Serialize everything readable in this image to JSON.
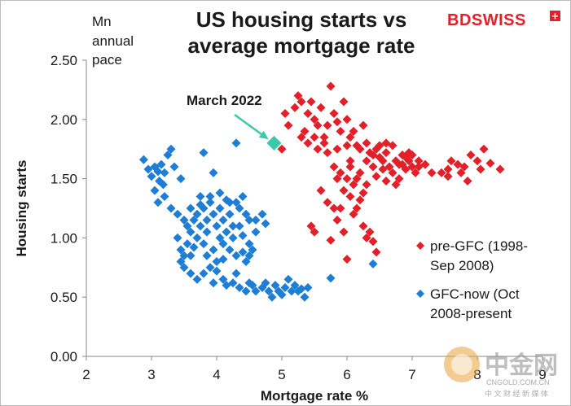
{
  "brand": {
    "logo_text": "BDSWISS",
    "plus_symbol": "+",
    "accent": "#e3202a"
  },
  "watermark": {
    "name_cn": "中金网",
    "url": "CNGOLD.COM.CN",
    "tagline_cn": "中 文 财 经 新 媒 体"
  },
  "chart_data": {
    "type": "scatter",
    "title_lines": [
      "US housing starts vs",
      "average mortgage rate"
    ],
    "unit_lines": [
      "Mn",
      "annual",
      "pace"
    ],
    "xlabel": "Mortgage rate %",
    "ylabel": "Housing starts",
    "xlim": [
      2,
      9
    ],
    "ylim": [
      0,
      2.5
    ],
    "x_ticks": [
      2,
      3,
      4,
      5,
      6,
      7,
      8,
      9
    ],
    "y_ticks": [
      "0.00",
      "0.50",
      "1.00",
      "1.50",
      "2.00",
      "2.50"
    ],
    "grid": false,
    "legend_position": "right",
    "annotation": {
      "label": "March 2022",
      "x": 4.88,
      "y": 1.8,
      "color": "#3cc9a8"
    },
    "series": [
      {
        "name": "pre-GFC (1998-Sep 2008)",
        "legend_lines": [
          "pre-GFC (1998-",
          "Sep 2008)"
        ],
        "color": "#e3202a",
        "points": [
          [
            5.0,
            1.75
          ],
          [
            5.1,
            1.95
          ],
          [
            5.05,
            2.05
          ],
          [
            5.2,
            2.1
          ],
          [
            5.25,
            2.2
          ],
          [
            5.3,
            2.15
          ],
          [
            5.35,
            1.9
          ],
          [
            5.4,
            2.05
          ],
          [
            5.45,
            2.15
          ],
          [
            5.5,
            2.0
          ],
          [
            5.55,
            1.95
          ],
          [
            5.6,
            2.1
          ],
          [
            5.65,
            1.85
          ],
          [
            5.7,
            1.95
          ],
          [
            5.75,
            2.28
          ],
          [
            5.8,
            2.05
          ],
          [
            5.85,
            1.98
          ],
          [
            5.9,
            1.9
          ],
          [
            5.95,
            2.15
          ],
          [
            6.0,
            2.0
          ],
          [
            6.05,
            1.85
          ],
          [
            6.1,
            1.9
          ],
          [
            6.15,
            1.78
          ],
          [
            6.2,
            1.75
          ],
          [
            6.25,
            1.95
          ],
          [
            6.3,
            1.8
          ],
          [
            6.35,
            1.72
          ],
          [
            6.4,
            1.7
          ],
          [
            6.45,
            1.75
          ],
          [
            6.5,
            1.68
          ],
          [
            6.55,
            1.65
          ],
          [
            6.6,
            1.72
          ],
          [
            6.65,
            1.6
          ],
          [
            6.7,
            1.78
          ],
          [
            6.75,
            1.65
          ],
          [
            6.8,
            1.62
          ],
          [
            6.85,
            1.7
          ],
          [
            6.9,
            1.58
          ],
          [
            6.95,
            1.65
          ],
          [
            7.0,
            1.6
          ],
          [
            7.05,
            1.55
          ],
          [
            7.2,
            1.62
          ],
          [
            7.3,
            1.55
          ],
          [
            7.45,
            1.55
          ],
          [
            7.55,
            1.58
          ],
          [
            7.6,
            1.65
          ],
          [
            7.7,
            1.62
          ],
          [
            7.75,
            1.55
          ],
          [
            7.8,
            1.6
          ],
          [
            7.85,
            1.48
          ],
          [
            7.9,
            1.7
          ],
          [
            8.0,
            1.65
          ],
          [
            8.05,
            1.58
          ],
          [
            8.1,
            1.75
          ],
          [
            8.2,
            1.63
          ],
          [
            8.35,
            1.58
          ],
          [
            5.4,
            1.8
          ],
          [
            5.55,
            1.75
          ],
          [
            5.7,
            1.72
          ],
          [
            5.8,
            1.6
          ],
          [
            5.85,
            1.5
          ],
          [
            5.9,
            1.55
          ],
          [
            5.95,
            1.4
          ],
          [
            6.0,
            1.5
          ],
          [
            6.05,
            1.65
          ],
          [
            6.1,
            1.45
          ],
          [
            6.15,
            1.5
          ],
          [
            6.2,
            1.55
          ],
          [
            6.25,
            1.38
          ],
          [
            6.3,
            1.45
          ],
          [
            6.4,
            1.6
          ],
          [
            6.45,
            1.52
          ],
          [
            6.55,
            1.58
          ],
          [
            6.6,
            1.48
          ],
          [
            6.7,
            1.55
          ],
          [
            6.75,
            1.45
          ],
          [
            6.8,
            1.5
          ],
          [
            6.85,
            1.62
          ],
          [
            6.9,
            1.68
          ],
          [
            6.95,
            1.72
          ],
          [
            7.0,
            1.7
          ],
          [
            7.1,
            1.65
          ],
          [
            5.8,
            1.25
          ],
          [
            5.85,
            1.15
          ],
          [
            5.95,
            1.05
          ],
          [
            5.75,
            0.98
          ],
          [
            5.45,
            1.1
          ],
          [
            5.5,
            1.05
          ],
          [
            6.1,
            1.2
          ],
          [
            6.2,
            1.32
          ],
          [
            6.25,
            1.1
          ],
          [
            6.3,
            1.0
          ],
          [
            6.35,
            1.05
          ],
          [
            6.4,
            0.97
          ],
          [
            6.0,
            0.82
          ],
          [
            6.45,
            0.88
          ],
          [
            5.6,
            1.4
          ],
          [
            5.7,
            1.3
          ],
          [
            5.9,
            1.25
          ],
          [
            6.05,
            1.35
          ],
          [
            6.15,
            1.25
          ],
          [
            5.3,
            1.85
          ],
          [
            5.65,
            1.8
          ],
          [
            6.0,
            1.78
          ],
          [
            6.3,
            1.65
          ],
          [
            6.6,
            1.8
          ],
          [
            7.1,
            1.6
          ],
          [
            7.55,
            1.52
          ],
          [
            5.85,
            1.75
          ],
          [
            6.05,
            1.6
          ],
          [
            5.5,
            1.85
          ],
          [
            6.5,
            1.78
          ]
        ]
      },
      {
        "name": "GFC-now (Oct 2008-present",
        "legend_lines": [
          "GFC-now (Oct",
          "2008-present"
        ],
        "color": "#1e7ed6",
        "points": [
          [
            2.88,
            1.66
          ],
          [
            2.95,
            1.58
          ],
          [
            3.0,
            1.52
          ],
          [
            3.05,
            1.6
          ],
          [
            3.1,
            1.56
          ],
          [
            3.15,
            1.62
          ],
          [
            3.2,
            1.55
          ],
          [
            3.25,
            1.7
          ],
          [
            3.3,
            1.75
          ],
          [
            3.12,
            1.48
          ],
          [
            3.05,
            1.4
          ],
          [
            3.1,
            1.3
          ],
          [
            3.18,
            1.45
          ],
          [
            3.35,
            1.6
          ],
          [
            3.2,
            1.35
          ],
          [
            3.3,
            1.25
          ],
          [
            3.4,
            1.2
          ],
          [
            3.5,
            1.15
          ],
          [
            3.4,
            1.0
          ],
          [
            3.45,
            0.9
          ],
          [
            3.5,
            0.85
          ],
          [
            3.55,
            0.95
          ],
          [
            3.6,
            1.05
          ],
          [
            3.65,
            1.15
          ],
          [
            3.7,
            1.2
          ],
          [
            3.75,
            1.1
          ],
          [
            3.8,
            1.25
          ],
          [
            3.85,
            1.15
          ],
          [
            3.9,
            1.3
          ],
          [
            3.95,
            1.2
          ],
          [
            4.0,
            1.1
          ],
          [
            4.05,
            1.25
          ],
          [
            4.1,
            1.15
          ],
          [
            4.15,
            1.05
          ],
          [
            4.2,
            1.2
          ],
          [
            4.25,
            1.1
          ],
          [
            4.3,
            1.3
          ],
          [
            4.35,
            1.25
          ],
          [
            4.4,
            1.35
          ],
          [
            4.45,
            1.2
          ],
          [
            4.5,
            1.15
          ],
          [
            3.7,
            1.0
          ],
          [
            3.8,
            0.95
          ],
          [
            3.85,
            1.05
          ],
          [
            3.95,
            0.9
          ],
          [
            4.05,
            1.0
          ],
          [
            4.1,
            0.95
          ],
          [
            4.2,
            0.9
          ],
          [
            4.3,
            0.85
          ],
          [
            4.4,
            0.88
          ],
          [
            4.45,
            0.8
          ],
          [
            4.5,
            0.85
          ],
          [
            4.55,
            0.9
          ],
          [
            3.45,
            0.8
          ],
          [
            3.5,
            0.75
          ],
          [
            3.6,
            0.7
          ],
          [
            3.7,
            0.65
          ],
          [
            3.8,
            0.7
          ],
          [
            3.9,
            0.75
          ],
          [
            4.0,
            0.72
          ],
          [
            4.1,
            0.65
          ],
          [
            4.15,
            0.6
          ],
          [
            4.25,
            0.62
          ],
          [
            4.35,
            0.58
          ],
          [
            4.45,
            0.55
          ],
          [
            4.55,
            0.6
          ],
          [
            4.6,
            0.55
          ],
          [
            4.7,
            0.58
          ],
          [
            4.8,
            0.55
          ],
          [
            4.85,
            0.5
          ],
          [
            4.9,
            0.6
          ],
          [
            4.95,
            0.55
          ],
          [
            5.0,
            0.52
          ],
          [
            5.05,
            0.58
          ],
          [
            5.1,
            0.65
          ],
          [
            5.15,
            0.55
          ],
          [
            5.2,
            0.6
          ],
          [
            5.25,
            0.55
          ],
          [
            5.3,
            0.57
          ],
          [
            5.35,
            0.5
          ],
          [
            5.4,
            0.58
          ],
          [
            4.3,
            1.8
          ],
          [
            3.8,
            1.72
          ],
          [
            3.95,
            1.55
          ],
          [
            3.45,
            1.5
          ],
          [
            4.7,
            1.2
          ],
          [
            4.75,
            1.12
          ],
          [
            4.2,
            1.3
          ],
          [
            6.4,
            0.78
          ],
          [
            5.75,
            0.66
          ],
          [
            3.9,
            1.35
          ],
          [
            3.75,
            1.28
          ],
          [
            4.05,
            1.38
          ],
          [
            4.15,
            1.32
          ],
          [
            4.35,
            1.1
          ],
          [
            4.4,
            1.02
          ],
          [
            4.5,
            0.95
          ],
          [
            4.6,
            1.05
          ],
          [
            3.85,
            0.85
          ],
          [
            4.0,
            0.8
          ],
          [
            4.1,
            0.82
          ],
          [
            3.6,
            0.85
          ],
          [
            3.65,
            0.92
          ],
          [
            3.55,
            1.1
          ],
          [
            3.6,
            1.25
          ],
          [
            3.75,
            1.35
          ],
          [
            4.25,
            1.0
          ],
          [
            4.6,
            1.15
          ],
          [
            4.3,
            0.7
          ],
          [
            3.95,
            0.62
          ],
          [
            4.5,
            0.62
          ],
          [
            4.75,
            0.62
          ]
        ]
      }
    ]
  }
}
